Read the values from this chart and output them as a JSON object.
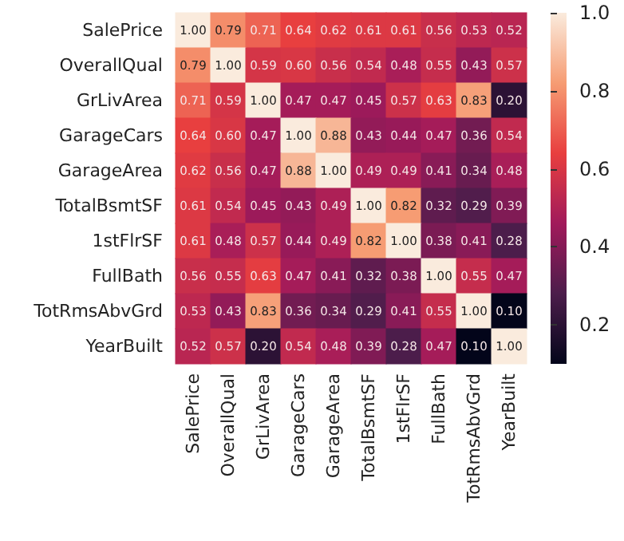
{
  "chart_data": {
    "type": "heatmap",
    "categories": [
      "SalePrice",
      "OverallQual",
      "GrLivArea",
      "GarageCars",
      "GarageArea",
      "TotalBsmtSF",
      "1stFlrSF",
      "FullBath",
      "TotRmsAbvGrd",
      "YearBuilt"
    ],
    "y_categories": [
      "SalePrice",
      "OverallQual",
      "GrLivArea",
      "GarageCars",
      "GarageArea",
      "TotalBsmtSF",
      "1stFlrSF",
      "FullBath",
      "TotRmsAbvGrd",
      "YearBuilt"
    ],
    "cells": [
      [
        1.0,
        0.79,
        0.71,
        0.64,
        0.62,
        0.61,
        0.61,
        0.56,
        0.53,
        0.52
      ],
      [
        0.79,
        1.0,
        0.59,
        0.6,
        0.56,
        0.54,
        0.48,
        0.55,
        0.43,
        0.57
      ],
      [
        0.71,
        0.59,
        1.0,
        0.47,
        0.47,
        0.45,
        0.57,
        0.63,
        0.83,
        0.2
      ],
      [
        0.64,
        0.6,
        0.47,
        1.0,
        0.88,
        0.43,
        0.44,
        0.47,
        0.36,
        0.54
      ],
      [
        0.62,
        0.56,
        0.47,
        0.88,
        1.0,
        0.49,
        0.49,
        0.41,
        0.34,
        0.48
      ],
      [
        0.61,
        0.54,
        0.45,
        0.43,
        0.49,
        1.0,
        0.82,
        0.32,
        0.29,
        0.39
      ],
      [
        0.61,
        0.48,
        0.57,
        0.44,
        0.49,
        0.82,
        1.0,
        0.38,
        0.41,
        0.28
      ],
      [
        0.56,
        0.55,
        0.63,
        0.47,
        0.41,
        0.32,
        0.38,
        1.0,
        0.55,
        0.47
      ],
      [
        0.53,
        0.43,
        0.83,
        0.36,
        0.34,
        0.29,
        0.41,
        0.55,
        1.0,
        0.1
      ],
      [
        0.52,
        0.57,
        0.2,
        0.54,
        0.48,
        0.39,
        0.28,
        0.47,
        0.1,
        1.0
      ]
    ],
    "cell_labels": [
      [
        "1.00",
        "0.79",
        "0.71",
        "0.64",
        "0.62",
        "0.61",
        "0.61",
        "0.56",
        "0.53",
        "0.52"
      ],
      [
        "0.79",
        "1.00",
        "0.59",
        "0.60",
        "0.56",
        "0.54",
        "0.48",
        "0.55",
        "0.43",
        "0.57"
      ],
      [
        "0.71",
        "0.59",
        "1.00",
        "0.47",
        "0.47",
        "0.45",
        "0.57",
        "0.63",
        "0.83",
        "0.20"
      ],
      [
        "0.64",
        "0.60",
        "0.47",
        "1.00",
        "0.88",
        "0.43",
        "0.44",
        "0.47",
        "0.36",
        "0.54"
      ],
      [
        "0.62",
        "0.56",
        "0.47",
        "0.88",
        "1.00",
        "0.49",
        "0.49",
        "0.41",
        "0.34",
        "0.48"
      ],
      [
        "0.61",
        "0.54",
        "0.45",
        "0.43",
        "0.49",
        "1.00",
        "0.82",
        "0.32",
        "0.29",
        "0.39"
      ],
      [
        "0.61",
        "0.48",
        "0.57",
        "0.44",
        "0.49",
        "0.82",
        "1.00",
        "0.38",
        "0.41",
        "0.28"
      ],
      [
        "0.56",
        "0.55",
        "0.63",
        "0.47",
        "0.41",
        "0.32",
        "0.38",
        "1.00",
        "0.55",
        "0.47"
      ],
      [
        "0.53",
        "0.43",
        "0.83",
        "0.36",
        "0.34",
        "0.29",
        "0.41",
        "0.55",
        "1.00",
        "0.10"
      ],
      [
        "0.52",
        "0.57",
        "0.20",
        "0.54",
        "0.48",
        "0.39",
        "0.28",
        "0.47",
        "0.10",
        "1.00"
      ]
    ],
    "clim": [
      0.1,
      1.0
    ],
    "cticks": [
      {
        "value": 0.2,
        "label": "0.2"
      },
      {
        "value": 0.4,
        "label": "0.4"
      },
      {
        "value": 0.6,
        "label": "0.6"
      },
      {
        "value": 0.8,
        "label": "0.8"
      },
      {
        "value": 1.0,
        "label": "1.0"
      }
    ],
    "data_labels": true
  }
}
